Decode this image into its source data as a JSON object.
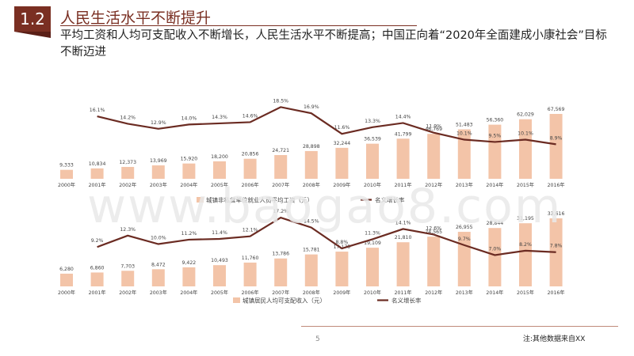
{
  "header": {
    "badge": "1.2",
    "title": "人民生活水平不断提升",
    "subtitle": "平均工资和人均可支配收入不断增长，人民生活水平不断提高；中国正向着“2020年全面建成小康社会”目标不断迈进"
  },
  "watermark": "www.baogao8.com",
  "footer": {
    "page": "5",
    "note": "注:其他数据来自XX"
  },
  "colors": {
    "bar": "#f3c4a8",
    "line": "#6b2b22",
    "accent": "#7a2f22"
  },
  "chart_data": [
    {
      "type": "bar",
      "categories": [
        "2000年",
        "2001年",
        "2002年",
        "2003年",
        "2004年",
        "2005年",
        "2006年",
        "2007年",
        "2008年",
        "2009年",
        "2010年",
        "2011年",
        "2012年",
        "2013年",
        "2014年",
        "2015年",
        "2016年"
      ],
      "series": [
        {
          "name": "城镇非私营单位就业人员平均工资（元）",
          "kind": "bar",
          "values": [
            9333,
            10834,
            12373,
            13969,
            15920,
            18200,
            20856,
            24721,
            28898,
            32244,
            36539,
            41799,
            46769,
            51483,
            56360,
            62029,
            67569
          ],
          "labels": [
            "9,333",
            "10,834",
            "12,373",
            "13,969",
            "15,920",
            "18,200",
            "20,856",
            "24,721",
            "28,898",
            "32,244",
            "36,539",
            "41,799",
            "46,769",
            "51,483",
            "56,360",
            "62,029",
            "67,569"
          ]
        },
        {
          "name": "名义增长率",
          "kind": "line",
          "values": [
            null,
            16.1,
            14.2,
            12.9,
            14.0,
            14.3,
            14.6,
            18.5,
            16.9,
            11.6,
            13.3,
            14.4,
            11.9,
            10.1,
            9.5,
            10.1,
            8.9
          ],
          "labels": [
            "",
            "16.1%",
            "14.2%",
            "12.9%",
            "14.0%",
            "14.3%",
            "14.6%",
            "18.5%",
            "16.9%",
            "11.6%",
            "13.3%",
            "14.4%",
            "11.9%",
            "10.1%",
            "9.5%",
            "10.1%",
            "8.9%"
          ]
        }
      ]
    },
    {
      "type": "bar",
      "categories": [
        "2000年",
        "2001年",
        "2002年",
        "2003年",
        "2004年",
        "2005年",
        "2006年",
        "2007年",
        "2008年",
        "2009年",
        "2010年",
        "2011年",
        "2012年",
        "2013年",
        "2014年",
        "2015年",
        "2016年"
      ],
      "series": [
        {
          "name": "城镇居民人均可支配收入（元）",
          "kind": "bar",
          "values": [
            6280,
            6860,
            7703,
            8472,
            9422,
            10493,
            11760,
            13786,
            15781,
            17175,
            19109,
            21810,
            24565,
            26955,
            28844,
            31195,
            33616
          ],
          "labels": [
            "6,280",
            "6,860",
            "7,703",
            "8,472",
            "9,422",
            "10,493",
            "11,760",
            "13,786",
            "15,781",
            "17,175",
            "19,109",
            "21,810",
            "24,565",
            "26,955",
            "28,844",
            "31,195",
            "33,616"
          ]
        },
        {
          "name": "名义增长率",
          "kind": "line",
          "values": [
            null,
            9.2,
            12.3,
            10.0,
            11.2,
            11.4,
            12.1,
            17.2,
            14.5,
            8.8,
            11.3,
            14.1,
            12.6,
            9.7,
            7.0,
            8.2,
            7.8
          ],
          "labels": [
            "",
            "9.2%",
            "12.3%",
            "10.0%",
            "11.2%",
            "11.4%",
            "12.1%",
            "17.2%",
            "14.5%",
            "8.8%",
            "11.3%",
            "14.1%",
            "12.6%",
            "9.7%",
            "7.0%",
            "8.2%",
            "7.8%"
          ]
        }
      ]
    }
  ]
}
